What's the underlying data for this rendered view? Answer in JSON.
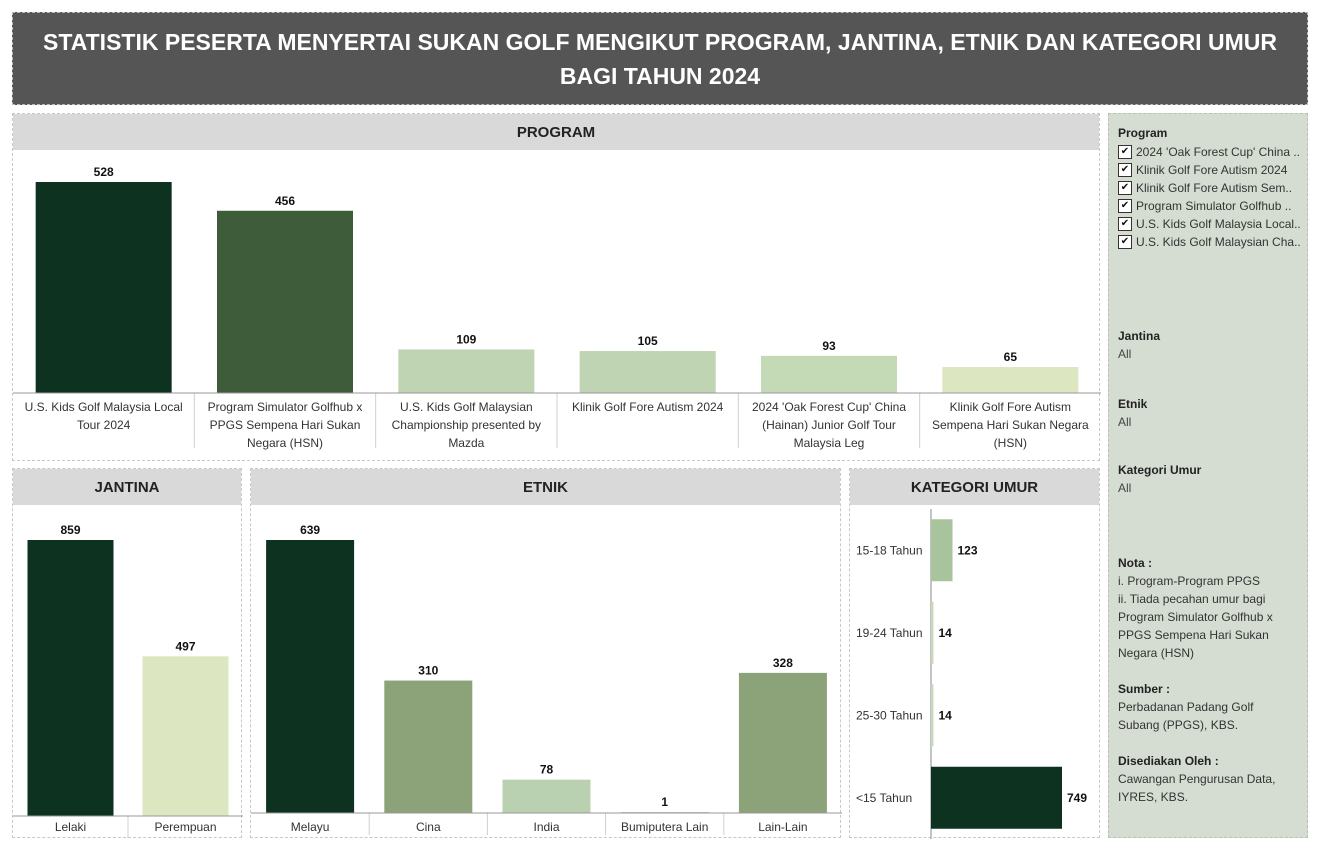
{
  "title": "STATISTIK PESERTA MENYERTAI SUKAN GOLF MENGIKUT PROGRAM, JANTINA, ETNIK DAN KATEGORI UMUR BAGI TAHUN 2024",
  "colors": {
    "dark_green": "#0d3320",
    "mid_dark_green": "#3e5c3a",
    "olive_green": "#8ca279",
    "light_green": "#b9d1b0",
    "pale_green": "#dce6c0",
    "header_gray": "#d9d9d9",
    "title_bg": "#555555",
    "sidebar_bg": "#d5ddd2"
  },
  "sidebar": {
    "program_filter": {
      "title": "Program",
      "items": [
        "2024 'Oak Forest Cup' China ..",
        "Klinik Golf Fore Autism 2024",
        "Klinik Golf Fore Autism Sem..",
        "Program Simulator Golfhub ..",
        "U.S. Kids Golf Malaysia Local..",
        "U.S. Kids Golf Malaysian Cha.."
      ],
      "check_icon": "check-icon"
    },
    "jantina_filter": {
      "title": "Jantina",
      "value": "All"
    },
    "etnik_filter": {
      "title": "Etnik",
      "value": "All"
    },
    "umur_filter": {
      "title": "Kategori Umur",
      "value": "All"
    },
    "nota": {
      "title": "Nota :",
      "lines": [
        "i. Program-Program PPGS",
        "ii. Tiada pecahan umur bagi",
        "Program Simulator Golfhub x",
        "PPGS Sempena Hari Sukan",
        "Negara (HSN)"
      ]
    },
    "sumber": {
      "title": "Sumber :",
      "lines": [
        "Perbadanan Padang Golf",
        "Subang (PPGS), KBS."
      ]
    },
    "disediakan": {
      "title": "Disediakan Oleh :",
      "lines": [
        "Cawangan Pengurusan Data,",
        "IYRES, KBS."
      ]
    }
  },
  "chart_data": [
    {
      "id": "program",
      "type": "bar",
      "title": "PROGRAM",
      "categories": [
        [
          "U.S. Kids Golf Malaysia Local",
          "Tour 2024"
        ],
        [
          "Program Simulator Golfhub x",
          "PPGS Sempena Hari Sukan",
          "Negara (HSN)"
        ],
        [
          "U.S. Kids Golf Malaysian",
          "Championship presented by",
          "Mazda"
        ],
        [
          "Klinik Golf Fore Autism 2024"
        ],
        [
          "2024 'Oak Forest Cup' China",
          "(Hainan) Junior Golf Tour",
          "Malaysia Leg"
        ],
        [
          "Klinik Golf Fore Autism",
          "Sempena Hari Sukan Negara",
          "(HSN)"
        ]
      ],
      "values": [
        528,
        456,
        109,
        105,
        93,
        65
      ],
      "bar_colors": [
        "#0d3320",
        "#3e5c3a",
        "#bed4b3",
        "#bed4b3",
        "#c4dab6",
        "#dce6c0"
      ],
      "ylim": [
        0,
        528
      ]
    },
    {
      "id": "jantina",
      "type": "bar",
      "title": "JANTINA",
      "categories": [
        [
          "Lelaki"
        ],
        [
          "Perempuan"
        ]
      ],
      "values": [
        859,
        497
      ],
      "bar_colors": [
        "#0d3320",
        "#dce6c0"
      ],
      "ylim": [
        0,
        859
      ]
    },
    {
      "id": "etnik",
      "type": "bar",
      "title": "ETNIK",
      "categories": [
        [
          "Melayu"
        ],
        [
          "Cina"
        ],
        [
          "India"
        ],
        [
          "Bumiputera Lain"
        ],
        [
          "Lain-Lain"
        ]
      ],
      "values": [
        639,
        310,
        78,
        1,
        328
      ],
      "bar_colors": [
        "#0d3320",
        "#8ca279",
        "#b9d1b0",
        "#b9d1b0",
        "#8ca279"
      ],
      "ylim": [
        0,
        639
      ]
    },
    {
      "id": "kategori_umur",
      "type": "bar",
      "orientation": "horizontal",
      "title": "KATEGORI UMUR",
      "categories": [
        "15-18  Tahun",
        "19-24 Tahun",
        "25-30 Tahun",
        "<15 Tahun"
      ],
      "values": [
        123,
        14,
        14,
        749
      ],
      "bar_colors": [
        "#a8c49c",
        "#c6d9bd",
        "#c6d9bd",
        "#0d3320"
      ],
      "xlim": [
        0,
        749
      ]
    }
  ]
}
